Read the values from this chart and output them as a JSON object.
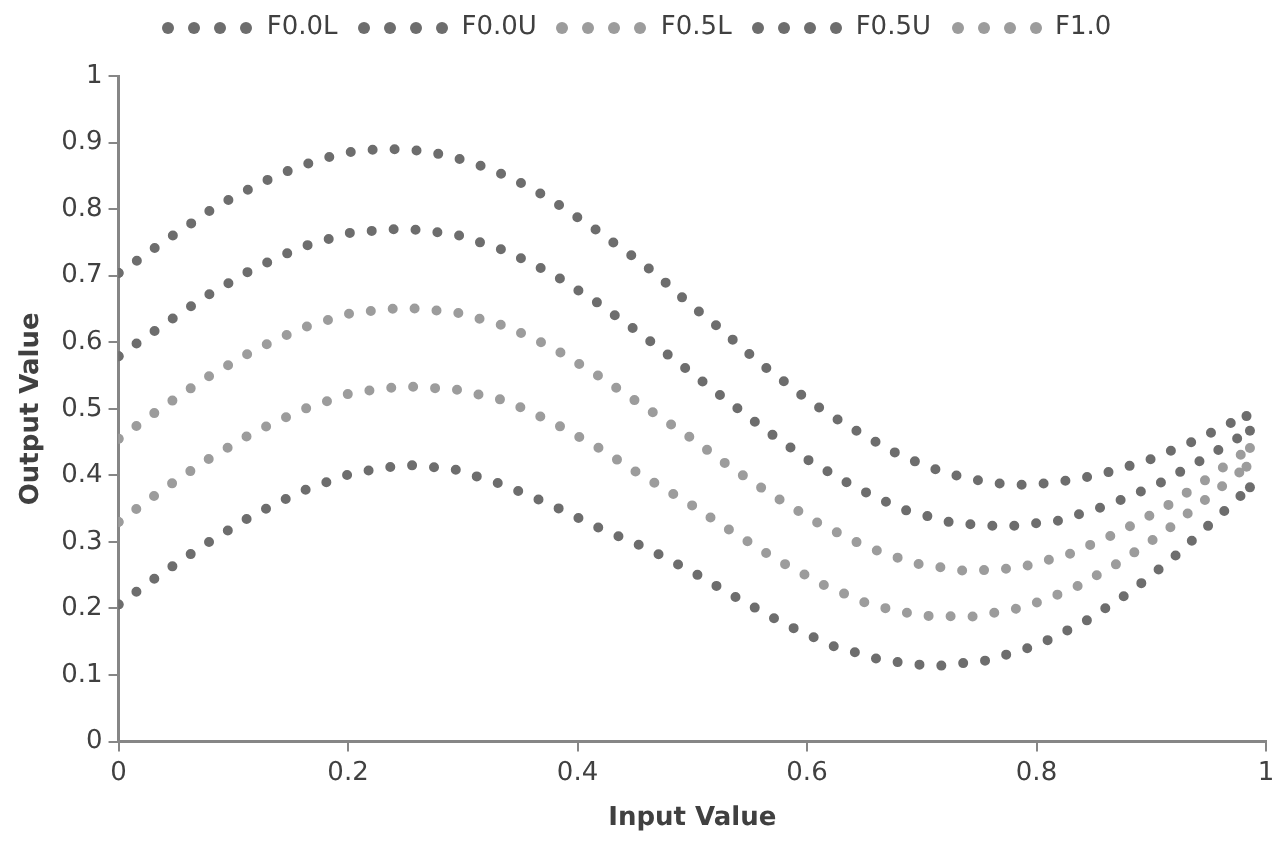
{
  "chart_data": {
    "type": "line",
    "xlabel": "Input Value",
    "ylabel": "Output Value",
    "xlim": [
      0,
      1
    ],
    "xticks": [
      0,
      0.2,
      0.4,
      0.6,
      0.8,
      1
    ],
    "ylim": [
      0,
      1
    ],
    "yticks": [
      0,
      0.1,
      0.2,
      0.3,
      0.4,
      0.5,
      0.6,
      0.7,
      0.8,
      0.9,
      1
    ],
    "grid": false,
    "legend": "top",
    "line_style": "dotted",
    "series": [
      {
        "name": "F0.0L",
        "color": "#6d6d6d",
        "x": [
          0,
          0.038,
          0.077,
          0.117,
          0.159,
          0.203,
          0.249,
          0.291,
          0.335,
          0.378,
          0.42,
          0.461,
          0.5,
          0.54,
          0.58,
          0.622,
          0.666,
          0.711,
          0.757,
          0.801,
          0.842,
          0.881,
          0.917,
          0.952,
          0.986
        ],
        "values": [
          0.206,
          0.253,
          0.298,
          0.34,
          0.376,
          0.403,
          0.416,
          0.41,
          0.386,
          0.355,
          0.32,
          0.29,
          0.255,
          0.215,
          0.177,
          0.144,
          0.122,
          0.113,
          0.122,
          0.145,
          0.18,
          0.224,
          0.273,
          0.328,
          0.382
        ]
      },
      {
        "name": "F0.0U",
        "color": "#6d6d6d",
        "x": [
          0,
          0.02,
          0.038,
          0.057,
          0.077,
          0.097,
          0.117,
          0.137,
          0.159,
          0.18,
          0.203,
          0.226,
          0.249,
          0.271,
          0.294,
          0.316,
          0.338,
          0.358,
          0.378,
          0.397,
          0.416,
          0.435,
          0.454,
          0.472,
          0.49,
          0.508,
          0.526,
          0.543,
          0.561,
          0.58,
          0.598,
          0.617,
          0.637,
          0.657,
          0.677,
          0.698,
          0.72,
          0.742,
          0.764,
          0.787,
          0.81,
          0.833,
          0.855,
          0.877,
          0.899,
          0.92,
          0.942,
          0.962,
          0.983
        ],
        "values": [
          0.704,
          0.727,
          0.75,
          0.771,
          0.795,
          0.815,
          0.833,
          0.85,
          0.865,
          0.877,
          0.886,
          0.89,
          0.89,
          0.886,
          0.877,
          0.865,
          0.85,
          0.833,
          0.813,
          0.791,
          0.769,
          0.745,
          0.722,
          0.697,
          0.669,
          0.643,
          0.618,
          0.592,
          0.566,
          0.541,
          0.517,
          0.494,
          0.473,
          0.453,
          0.434,
          0.418,
          0.404,
          0.395,
          0.388,
          0.386,
          0.388,
          0.394,
          0.401,
          0.412,
          0.424,
          0.439,
          0.455,
          0.473,
          0.489
        ]
      },
      {
        "name": "F0.5L",
        "color": "#9c9c9c",
        "x": [
          0,
          0.038,
          0.077,
          0.117,
          0.159,
          0.203,
          0.249,
          0.294,
          0.338,
          0.378,
          0.416,
          0.454,
          0.498,
          0.536,
          0.574,
          0.615,
          0.656,
          0.7,
          0.746,
          0.79,
          0.832,
          0.872,
          0.91,
          0.946,
          0.983
        ],
        "values": [
          0.33,
          0.378,
          0.423,
          0.464,
          0.498,
          0.524,
          0.534,
          0.529,
          0.512,
          0.48,
          0.444,
          0.402,
          0.357,
          0.314,
          0.273,
          0.235,
          0.205,
          0.189,
          0.188,
          0.202,
          0.23,
          0.269,
          0.313,
          0.362,
          0.413
        ]
      },
      {
        "name": "F0.5U",
        "color": "#6d6d6d",
        "x": [
          0,
          0.038,
          0.077,
          0.117,
          0.159,
          0.203,
          0.249,
          0.294,
          0.338,
          0.378,
          0.416,
          0.454,
          0.491,
          0.527,
          0.564,
          0.602,
          0.642,
          0.683,
          0.728,
          0.774,
          0.819,
          0.864,
          0.906,
          0.946,
          0.986
        ],
        "values": [
          0.579,
          0.625,
          0.67,
          0.71,
          0.743,
          0.765,
          0.771,
          0.762,
          0.737,
          0.703,
          0.661,
          0.614,
          0.565,
          0.517,
          0.468,
          0.422,
          0.382,
          0.349,
          0.328,
          0.323,
          0.332,
          0.356,
          0.387,
          0.425,
          0.467
        ]
      },
      {
        "name": "F1.0",
        "color": "#9c9c9c",
        "x": [
          0,
          0.038,
          0.077,
          0.117,
          0.159,
          0.203,
          0.249,
          0.294,
          0.338,
          0.378,
          0.416,
          0.454,
          0.495,
          0.532,
          0.57,
          0.61,
          0.651,
          0.693,
          0.739,
          0.785,
          0.829,
          0.871,
          0.911,
          0.949,
          0.986
        ],
        "values": [
          0.455,
          0.502,
          0.547,
          0.587,
          0.621,
          0.644,
          0.652,
          0.645,
          0.624,
          0.592,
          0.552,
          0.508,
          0.461,
          0.414,
          0.37,
          0.328,
          0.293,
          0.268,
          0.256,
          0.261,
          0.282,
          0.314,
          0.351,
          0.395,
          0.441
        ]
      }
    ]
  }
}
